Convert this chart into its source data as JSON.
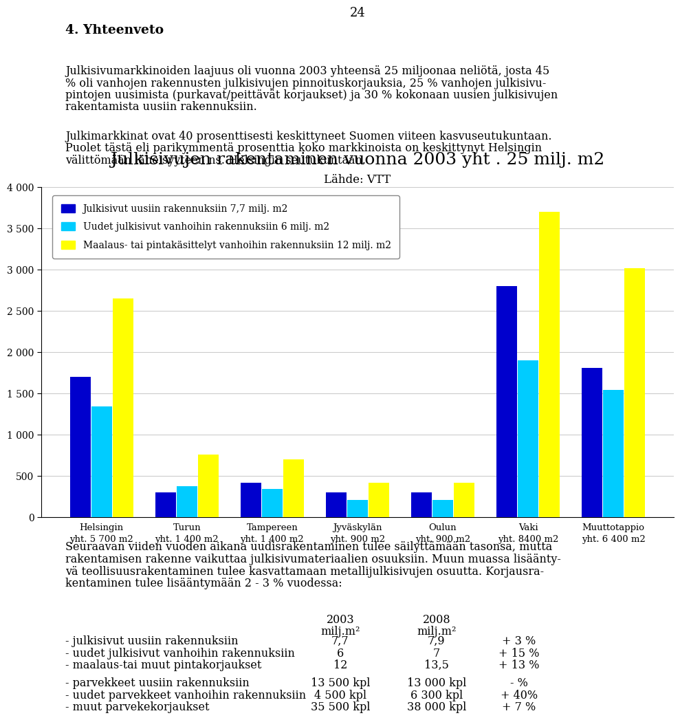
{
  "page_number": "24",
  "section_title": "4. Yhteenveto",
  "paragraph1_lines": [
    "Julkisivumarkkinoiden laajuus oli vuonna 2003 yhteensä 25 miljoonaa neliötä, josta 45",
    "% oli vanhojen rakennusten julkisivujen pinnoituskorjauksia, 25 % vanhojen julkisivu-",
    "pintojen uusimista (purkavat/peittävät korjaukset) ja 30 % kokonaan uusien julkisivujen",
    "rakentamista uusiin rakennuksiin."
  ],
  "paragraph2_lines": [
    "Julkimarkkinat ovat 40 prosenttisesti keskittyneet Suomen viiteen kasvuseutukuntaan.",
    "Puolet tästä eli parikymmentä prosenttia koko markkinoista on keskittynyt Helsingin",
    "välittömään läheisyyteen ns. Helsingin seutukuntaan."
  ],
  "chart_title": "Julkisivujen rakentaminen vuonna 2003 yht . 25 milj. m2",
  "chart_subtitle": "Lähde: VTT",
  "legend": [
    "Julkisivut uusiin rakennuksiin 7,7 milj. m2",
    "Uudet julkisivut vanhoihin rakennuksiin 6 milj. m2",
    "Maalaus- tai pintakäsittelyt vanhoihin rakennuksiin 12 milj. m2"
  ],
  "bar_colors": [
    "#0000CD",
    "#00CCFF",
    "#FFFF00"
  ],
  "categories": [
    "Helsingin\nyht. 5 700 m2",
    "Turun\nyht. 1 400 m2",
    "Tampereen\nyht. 1 400 m2",
    "Jyväskylän\nyht. 900 m2",
    "Oulun\nyht. 900 m2",
    "Vaki\nyht. 8400 m2",
    "Muuttotappio\nyht. 6 400 m2"
  ],
  "series1": [
    1700,
    300,
    415,
    300,
    305,
    2800,
    1810
  ],
  "series2": [
    1340,
    380,
    340,
    210,
    210,
    1900,
    1540
  ],
  "series3": [
    2650,
    760,
    700,
    415,
    420,
    3700,
    3020
  ],
  "ylim": [
    0,
    4000
  ],
  "yticks": [
    0,
    500,
    1000,
    1500,
    2000,
    2500,
    3000,
    3500,
    4000
  ],
  "paragraph3_lines": [
    "Seuraavan viiden vuoden aikana uudisrakentaminen tulee säilyttämään tasonsa, mutta",
    "rakentamisen rakenne vaikuttaa julkisivumateriaalien osuuksiin. Muun muassa lisäänty-",
    "vä teollisuusrakentaminen tulee kasvattamaan metallijulkisivujen osuutta. Korjausra-",
    "kentaminen tulee lisääntymään 2 - 3 % vuodessa:"
  ],
  "table_rows": [
    [
      "- julkisivut uusiin rakennuksiin",
      "7,7",
      "7,9",
      "+ 3 %"
    ],
    [
      "- uudet julkisivut vanhoihin rakennuksiin",
      "6",
      "7",
      "+ 15 %"
    ],
    [
      "- maalaus-tai muut pintakorjaukset",
      "12",
      "13,5",
      "+ 13 %"
    ],
    [
      "",
      "",
      "",
      ""
    ],
    [
      "- parvekkeet uusiin rakennuksiin",
      "13 500 kpl",
      "13 000 kpl",
      "- %"
    ],
    [
      "- uudet parvekkeet vanhoihin rakennuksiin",
      "4 500 kpl",
      "6 300 kpl",
      "+ 40%"
    ],
    [
      "- muut parvekekorjaukset",
      "35 500 kpl",
      "38 000 kpl",
      "+ 7 %"
    ]
  ]
}
